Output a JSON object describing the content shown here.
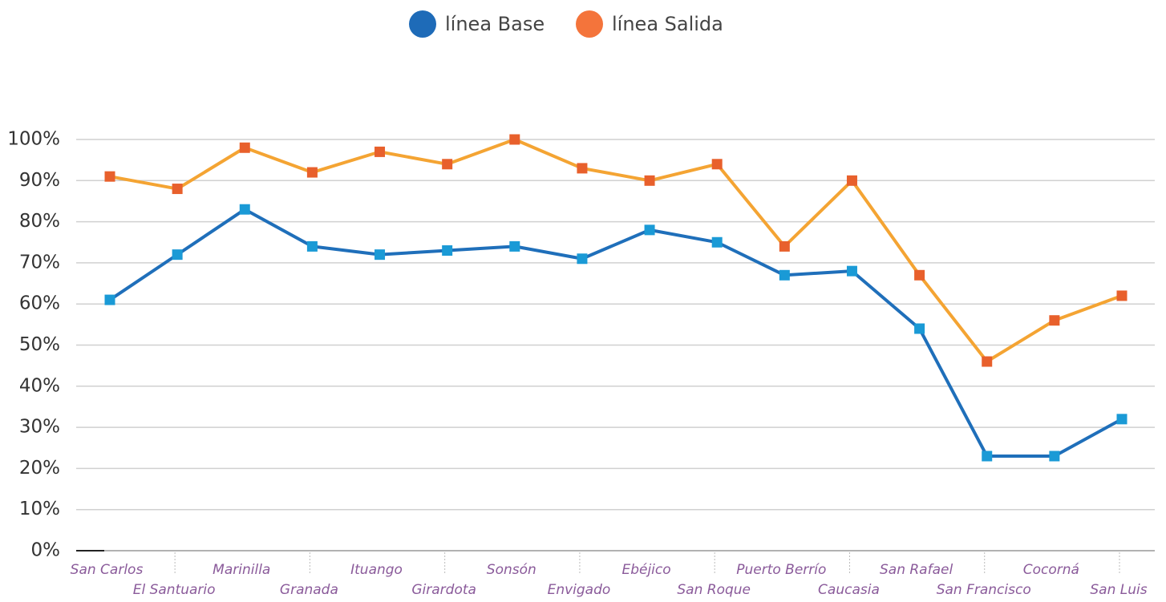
{
  "chart_data": {
    "type": "line",
    "categories": [
      "San Carlos",
      "El Santuario",
      "Marinilla",
      "Granada",
      "Ituango",
      "Girardota",
      "Sonsón",
      "Envigado",
      "Ebéjico",
      "San Roque",
      "Puerto Berrío",
      "Caucasia",
      "San Rafael",
      "San Francisco",
      "Cocorná",
      "San Luis"
    ],
    "series": [
      {
        "name": "línea Base",
        "color": "#1f6fba",
        "marker_color": "#1a9ad6",
        "legend_color": "#1e6bb8",
        "values": [
          61,
          72,
          83,
          74,
          72,
          73,
          74,
          71,
          78,
          75,
          67,
          68,
          54,
          23,
          23,
          32
        ]
      },
      {
        "name": "línea Salida",
        "color": "#f4a433",
        "marker_color": "#e8602c",
        "legend_color": "#f4743b",
        "values": [
          91,
          88,
          98,
          92,
          97,
          94,
          100,
          93,
          90,
          94,
          74,
          90,
          67,
          46,
          56,
          62
        ]
      }
    ],
    "ylim": [
      0,
      100
    ],
    "yticks": [
      {
        "value": 0,
        "label": "0%"
      },
      {
        "value": 10,
        "label": "10%"
      },
      {
        "value": 20,
        "label": "20%"
      },
      {
        "value": 30,
        "label": "30%"
      },
      {
        "value": 40,
        "label": "40%"
      },
      {
        "value": 50,
        "label": "50%"
      },
      {
        "value": 60,
        "label": "60%"
      },
      {
        "value": 70,
        "label": "70%"
      },
      {
        "value": 80,
        "label": "80%"
      },
      {
        "value": 90,
        "label": "90%"
      },
      {
        "value": 100,
        "label": "100%"
      }
    ],
    "grid": true,
    "legend": "top"
  }
}
